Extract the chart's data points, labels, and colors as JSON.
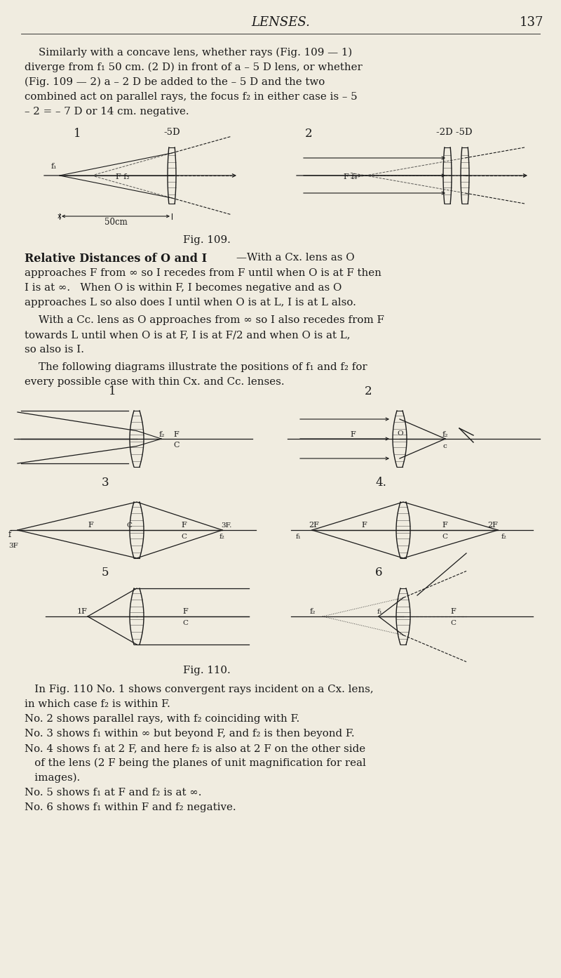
{
  "bg_color": "#f0ece0",
  "text_color": "#1a1a1a",
  "title": "LENSES.",
  "page_num": "137",
  "fig109_caption": "Fig. 109.",
  "fig110_caption": "Fig. 110."
}
